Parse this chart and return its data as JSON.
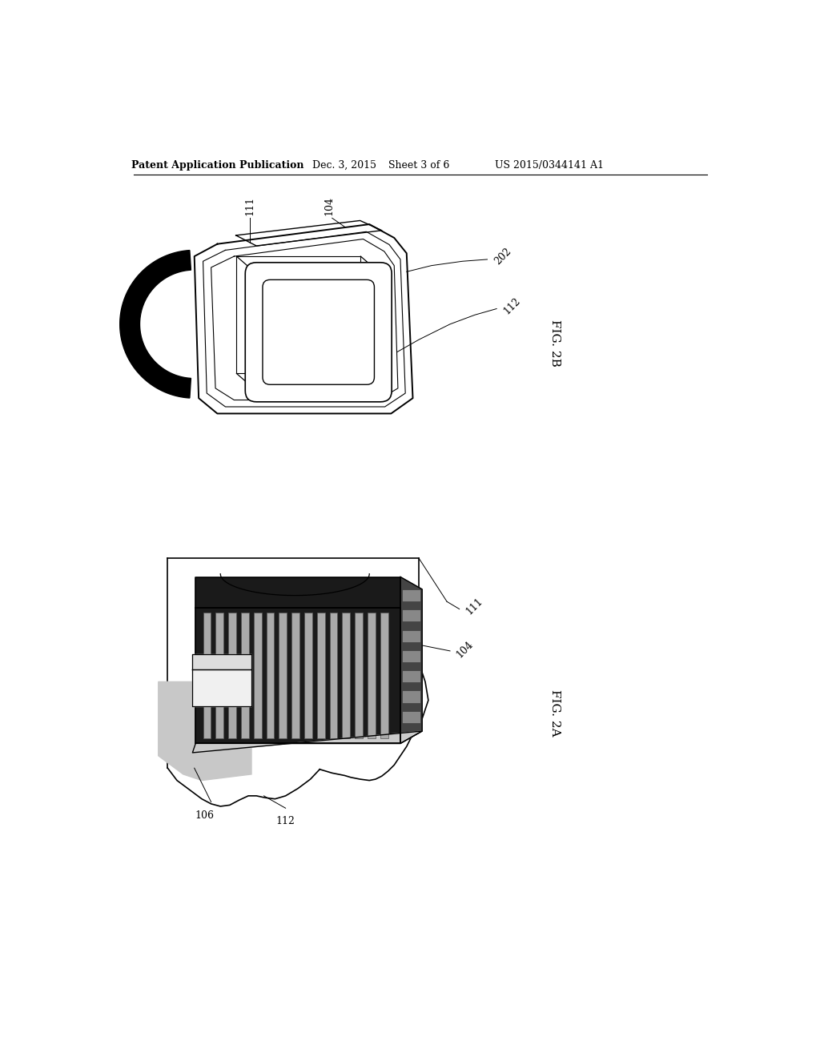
{
  "background_color": "#ffffff",
  "header_text": "Patent Application Publication",
  "header_date": "Dec. 3, 2015",
  "header_sheet": "Sheet 3 of 6",
  "header_patent": "US 2015/0344141 A1",
  "fig2b_label": "FIG. 2B",
  "fig2a_label": "FIG. 2A",
  "label_111_top": "111",
  "label_104_top": "104",
  "label_202": "202",
  "label_112_top": "112",
  "label_111_bot": "111",
  "label_104_bot": "104",
  "label_106": "106",
  "label_112_bot": "112"
}
